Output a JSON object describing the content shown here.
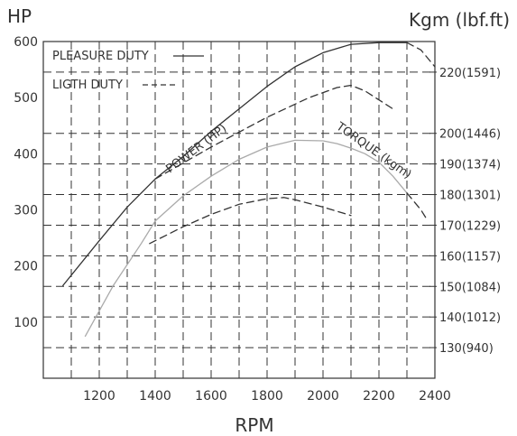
{
  "chart_data": {
    "type": "line",
    "xlabel": "RPM",
    "ylabel_left": "HP",
    "ylabel_right": "Kgm (lbf.ft)",
    "xlim": [
      1000,
      2400
    ],
    "x_ticks": [
      1200,
      1400,
      1600,
      1800,
      2000,
      2200,
      2400
    ],
    "x_tick_labels": [
      "1200",
      "1400",
      "1600",
      "1800",
      "2000",
      "2200",
      "2400"
    ],
    "ylim_left": [
      0,
      600
    ],
    "y_left_ticks": [
      100,
      200,
      300,
      400,
      500,
      600
    ],
    "y_left_tick_labels": [
      "100",
      "200",
      "300",
      "400",
      "500",
      "600"
    ],
    "ylim_right": [
      120,
      230
    ],
    "y_right_ticks": [
      130,
      140,
      150,
      160,
      170,
      180,
      190,
      200,
      220
    ],
    "y_right_tick_labels": [
      "130(940)",
      "140(1012)",
      "150(1084)",
      "160(1157)",
      "170(1229)",
      "180(1301)",
      "190(1374)",
      "200(1446)",
      "220(1591)"
    ],
    "legend": {
      "position": "top-left",
      "entries": [
        {
          "label": "PLEASURE DUTY",
          "style": "solid"
        },
        {
          "label": "LIGTH DUTY",
          "style": "dashed"
        }
      ]
    },
    "annotations": [
      "POWER (HP)",
      "TORQUE (kgm)"
    ],
    "grid": true,
    "series": [
      {
        "axis": "left",
        "style": "solid",
        "color": "#333333",
        "x": [
          1070,
          1200,
          1300,
          1400,
          1500,
          1600,
          1700,
          1800,
          1900,
          2000,
          2100,
          2200,
          2300
        ],
        "y": [
          165,
          245,
          305,
          355,
          395,
          440,
          480,
          520,
          555,
          580,
          595,
          598,
          598
        ]
      },
      {
        "axis": "left",
        "style": "dashed",
        "color": "#333333",
        "x": [
          2300,
          2350,
          2400
        ],
        "y": [
          598,
          585,
          555
        ]
      },
      {
        "axis": "left",
        "style": "dashed",
        "color": "#333333",
        "x": [
          1400,
          1600,
          1800,
          1950,
          2050,
          2100,
          2150,
          2250
        ],
        "y": [
          355,
          412,
          465,
          500,
          518,
          522,
          512,
          480
        ]
      },
      {
        "axis": "left",
        "style": "solid",
        "color": "#aaaaaa",
        "x": [
          1150,
          1250,
          1350,
          1400,
          1500,
          1600,
          1700,
          1800,
          1900,
          2000,
          2050,
          2100,
          2150,
          2200,
          2250,
          2300
        ],
        "y": [
          75,
          165,
          240,
          280,
          325,
          360,
          390,
          412,
          424,
          423,
          418,
          410,
          400,
          385,
          360,
          330
        ]
      },
      {
        "axis": "left",
        "style": "dashed",
        "color": "#333333",
        "x": [
          2300,
          2350,
          2375
        ],
        "y": [
          330,
          300,
          280
        ]
      },
      {
        "axis": "left",
        "style": "dashed",
        "color": "#333333",
        "x": [
          1380,
          1500,
          1600,
          1700,
          1800,
          1860,
          1900,
          2000,
          2100
        ],
        "y": [
          240,
          270,
          292,
          310,
          320,
          322,
          318,
          305,
          290
        ]
      }
    ]
  }
}
